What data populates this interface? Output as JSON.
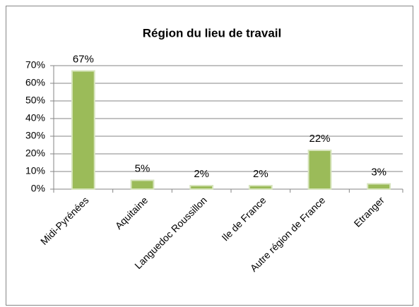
{
  "chart_data": {
    "type": "bar",
    "title": "Région du lieu de travail",
    "categories": [
      "Midi-Pyrénées",
      "Aquitaine",
      "Languedoc Roussillon",
      "Ile de France",
      "Autre région de France",
      "Etranger"
    ],
    "values": [
      67,
      5,
      2,
      2,
      22,
      3
    ],
    "value_labels": [
      "67%",
      "5%",
      "2%",
      "2%",
      "22%",
      "3%"
    ],
    "color": "#9bbb59",
    "ylim": [
      0,
      70
    ],
    "yticks": [
      {
        "value": 0,
        "label": "0%"
      },
      {
        "value": 10,
        "label": "10%"
      },
      {
        "value": 20,
        "label": "20%"
      },
      {
        "value": 30,
        "label": "30%"
      },
      {
        "value": 40,
        "label": "40%"
      },
      {
        "value": 50,
        "label": "50%"
      },
      {
        "value": 60,
        "label": "60%"
      },
      {
        "value": 70,
        "label": "70%"
      }
    ],
    "grid": true
  }
}
